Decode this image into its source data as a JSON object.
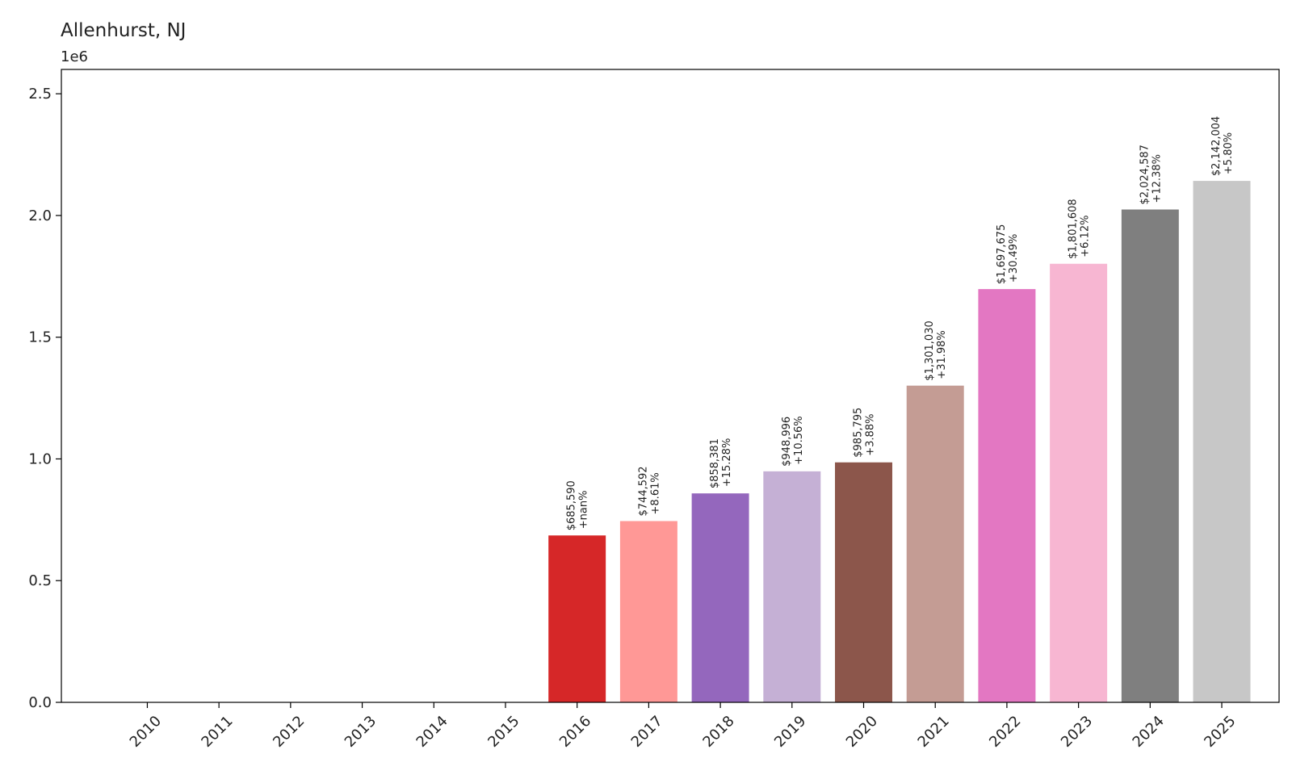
{
  "chart_data": {
    "type": "bar",
    "title": "Allenhurst, NJ",
    "y_offset_label": "1e6",
    "xlabel": "",
    "ylabel": "",
    "ylim": [
      0,
      2600000
    ],
    "yticks": [
      0.0,
      0.5,
      1.0,
      1.5,
      2.0,
      2.5
    ],
    "ytick_labels": [
      "0.0",
      "0.5",
      "1.0",
      "1.5",
      "2.0",
      "2.5"
    ],
    "categories": [
      "2010",
      "2011",
      "2012",
      "2013",
      "2014",
      "2015",
      "2016",
      "2017",
      "2018",
      "2019",
      "2020",
      "2021",
      "2022",
      "2023",
      "2024",
      "2025"
    ],
    "values": [
      0,
      0,
      0,
      0,
      0,
      0,
      685590,
      744592,
      858381,
      948996,
      985795,
      1301030,
      1697675,
      1801608,
      2024587,
      2142004
    ],
    "colors": [
      "#1f77b4",
      "#aec7e8",
      "#ff7f0e",
      "#ffbb78",
      "#2ca02c",
      "#98df8a",
      "#d62728",
      "#ff9896",
      "#9467bd",
      "#c5b0d5",
      "#8c564b",
      "#c49c94",
      "#e377c2",
      "#f7b6d2",
      "#7f7f7f",
      "#c7c7c7"
    ],
    "value_labels": [
      "",
      "",
      "",
      "",
      "",
      "",
      "$685,590",
      "$744,592",
      "$858,381",
      "$948,996",
      "$985,795",
      "$1,301,030",
      "$1,697,675",
      "$1,801,608",
      "$2,024,587",
      "$2,142,004"
    ],
    "change_labels": [
      "",
      "",
      "",
      "",
      "",
      "",
      "+nan%",
      "+8.61%",
      "+15.28%",
      "+10.56%",
      "+3.88%",
      "+31.98%",
      "+30.49%",
      "+6.12%",
      "+12.38%",
      "+5.80%"
    ],
    "grid": false,
    "legend": "none"
  }
}
